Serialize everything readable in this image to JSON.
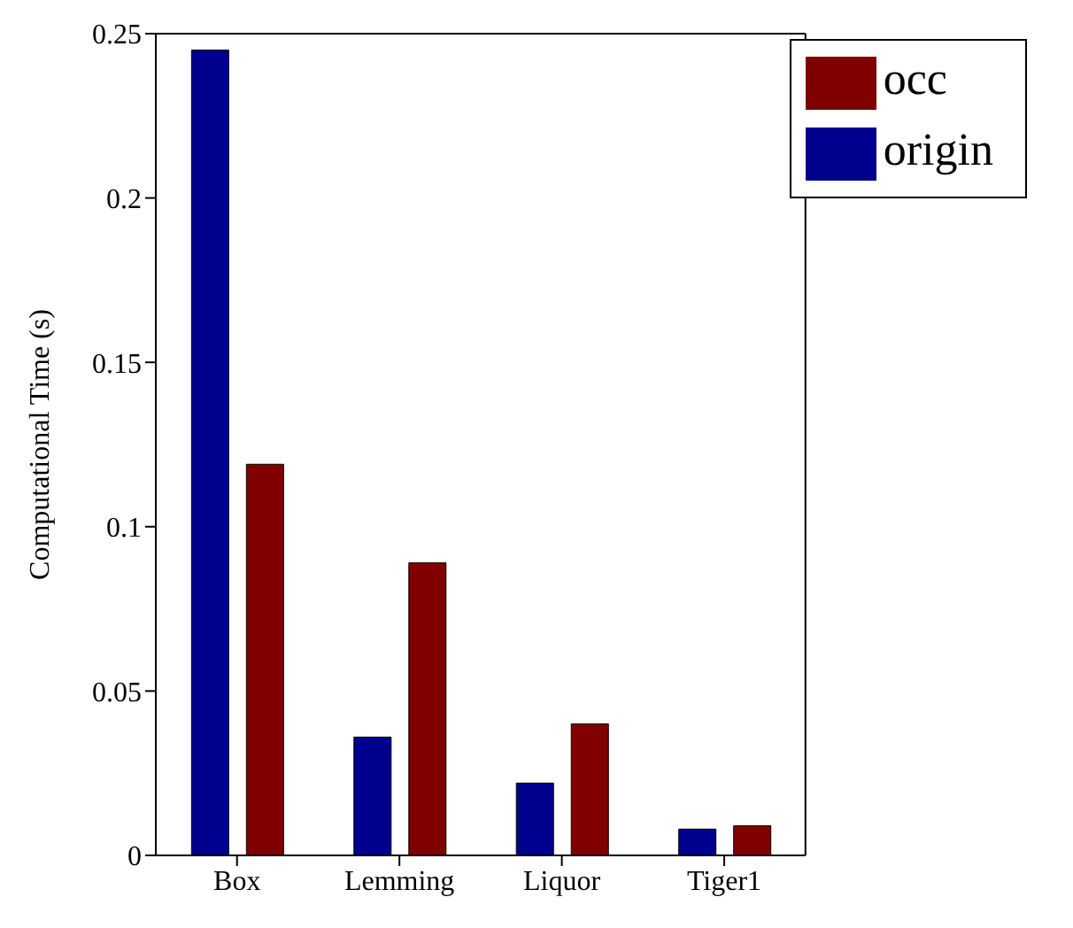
{
  "chart_data": {
    "type": "bar",
    "ylabel": "Computational Time (s)",
    "categories": [
      "Box",
      "Lemming",
      "Liquor",
      "Tiger1"
    ],
    "series": [
      {
        "name": "origin",
        "color": "#00008f",
        "values": [
          0.245,
          0.036,
          0.022,
          0.008
        ]
      },
      {
        "name": "occ",
        "color": "#800000",
        "values": [
          0.119,
          0.089,
          0.04,
          0.009
        ]
      }
    ],
    "ylim": [
      0,
      0.25
    ],
    "yticks": [
      0,
      0.05,
      0.1,
      0.15,
      0.2,
      0.25
    ],
    "legend": "top right",
    "grid": false
  }
}
